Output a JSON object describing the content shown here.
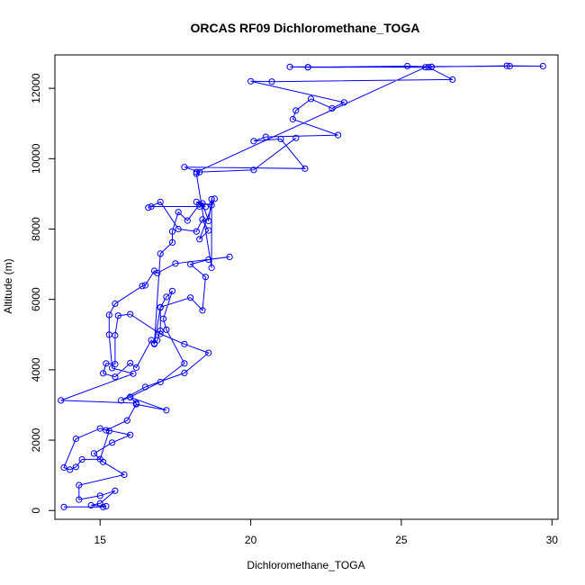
{
  "chart_data": {
    "type": "line",
    "title": "ORCAS RF09 Dichloromethane_TOGA",
    "xlabel": "Dichloromethane_TOGA",
    "ylabel": "Altitude (m)",
    "xlim": [
      13.5,
      30.2
    ],
    "ylim": [
      -250,
      12950
    ],
    "xticks": [
      15,
      20,
      25,
      30
    ],
    "yticks": [
      0,
      2000,
      4000,
      6000,
      8000,
      10000,
      12000
    ],
    "grid": false,
    "series": [
      {
        "color": "#0000ff",
        "marker": "open-circle",
        "points": [
          [
            13.8,
            100
          ],
          [
            15.1,
            100
          ],
          [
            15.2,
            120
          ],
          [
            14.7,
            150
          ],
          [
            15.0,
            200
          ],
          [
            15.5,
            560
          ],
          [
            15.0,
            420
          ],
          [
            14.3,
            310
          ],
          [
            14.3,
            720
          ],
          [
            15.8,
            1020
          ],
          [
            15.1,
            1380
          ],
          [
            14.8,
            1620
          ],
          [
            15.4,
            1930
          ],
          [
            16.0,
            2150
          ],
          [
            15.0,
            2330
          ],
          [
            14.2,
            2040
          ],
          [
            13.8,
            1220
          ],
          [
            14.0,
            1160
          ],
          [
            14.2,
            1240
          ],
          [
            14.4,
            1450
          ],
          [
            15.0,
            1460
          ],
          [
            15.3,
            2260
          ],
          [
            15.2,
            2280
          ],
          [
            15.9,
            2560
          ],
          [
            16.2,
            3020
          ],
          [
            17.2,
            2850
          ],
          [
            16.0,
            3220
          ],
          [
            15.7,
            3130
          ],
          [
            16.5,
            3510
          ],
          [
            17.8,
            3910
          ],
          [
            18.6,
            4480
          ],
          [
            17.8,
            4730
          ],
          [
            17.0,
            5020
          ],
          [
            16.0,
            5580
          ],
          [
            15.6,
            5540
          ],
          [
            15.5,
            4980
          ],
          [
            15.5,
            4160
          ],
          [
            15.2,
            4180
          ],
          [
            15.1,
            3900
          ],
          [
            15.5,
            3800
          ],
          [
            16.0,
            4190
          ],
          [
            16.2,
            4060
          ],
          [
            16.7,
            4840
          ],
          [
            16.8,
            4730
          ],
          [
            17.0,
            5780
          ],
          [
            18.0,
            6050
          ],
          [
            18.4,
            5690
          ],
          [
            18.5,
            6640
          ],
          [
            18.0,
            7000
          ],
          [
            18.6,
            7130
          ],
          [
            19.3,
            7210
          ],
          [
            17.5,
            7020
          ],
          [
            16.9,
            6750
          ],
          [
            16.8,
            6810
          ],
          [
            16.5,
            6400
          ],
          [
            16.4,
            6380
          ],
          [
            15.5,
            5880
          ],
          [
            15.3,
            5560
          ],
          [
            15.3,
            5000
          ],
          [
            15.4,
            4050
          ],
          [
            16.1,
            3890
          ],
          [
            13.7,
            3130
          ],
          [
            16.2,
            3050
          ],
          [
            16.0,
            3230
          ],
          [
            17.0,
            3650
          ],
          [
            17.8,
            4180
          ],
          [
            17.2,
            5140
          ],
          [
            17.1,
            5450
          ],
          [
            17.4,
            6240
          ],
          [
            17.2,
            6070
          ],
          [
            17.0,
            5770
          ],
          [
            17.0,
            5110
          ],
          [
            16.9,
            4840
          ],
          [
            16.8,
            4750
          ],
          [
            17.0,
            7300
          ],
          [
            17.4,
            7620
          ],
          [
            17.4,
            7930
          ],
          [
            17.6,
            8480
          ],
          [
            17.9,
            8240
          ],
          [
            18.3,
            8700
          ],
          [
            18.5,
            8630
          ],
          [
            18.2,
            8770
          ],
          [
            18.7,
            8680
          ],
          [
            18.8,
            8860
          ],
          [
            18.3,
            7710
          ],
          [
            18.6,
            7960
          ],
          [
            18.4,
            8270
          ],
          [
            18.2,
            7930
          ],
          [
            17.6,
            8000
          ],
          [
            17.0,
            8770
          ],
          [
            16.6,
            8610
          ],
          [
            16.7,
            8640
          ],
          [
            18.3,
            8640
          ],
          [
            18.4,
            8730
          ],
          [
            18.6,
            8230
          ],
          [
            18.7,
            8850
          ],
          [
            18.7,
            6900
          ],
          [
            18.2,
            9570
          ],
          [
            18.3,
            9620
          ],
          [
            17.8,
            9760
          ],
          [
            21.8,
            9720
          ],
          [
            21.0,
            10560
          ],
          [
            20.1,
            10500
          ],
          [
            20.5,
            10620
          ],
          [
            22.9,
            10670
          ],
          [
            21.4,
            11120
          ],
          [
            21.5,
            11370
          ],
          [
            22.0,
            11700
          ],
          [
            22.7,
            11430
          ],
          [
            23.1,
            11600
          ],
          [
            20.0,
            12200
          ],
          [
            20.7,
            12190
          ],
          [
            26.7,
            12250
          ],
          [
            25.9,
            12600
          ],
          [
            21.3,
            12610
          ],
          [
            21.9,
            12600
          ],
          [
            25.2,
            12630
          ],
          [
            26.0,
            12610
          ],
          [
            21.9,
            12600
          ],
          [
            28.6,
            12630
          ],
          [
            29.7,
            12630
          ],
          [
            28.5,
            12640
          ],
          [
            26.0,
            12610
          ],
          [
            25.8,
            12600
          ],
          [
            18.2,
            9620
          ],
          [
            20.1,
            9680
          ],
          [
            21.5,
            10590
          ]
        ]
      }
    ]
  }
}
